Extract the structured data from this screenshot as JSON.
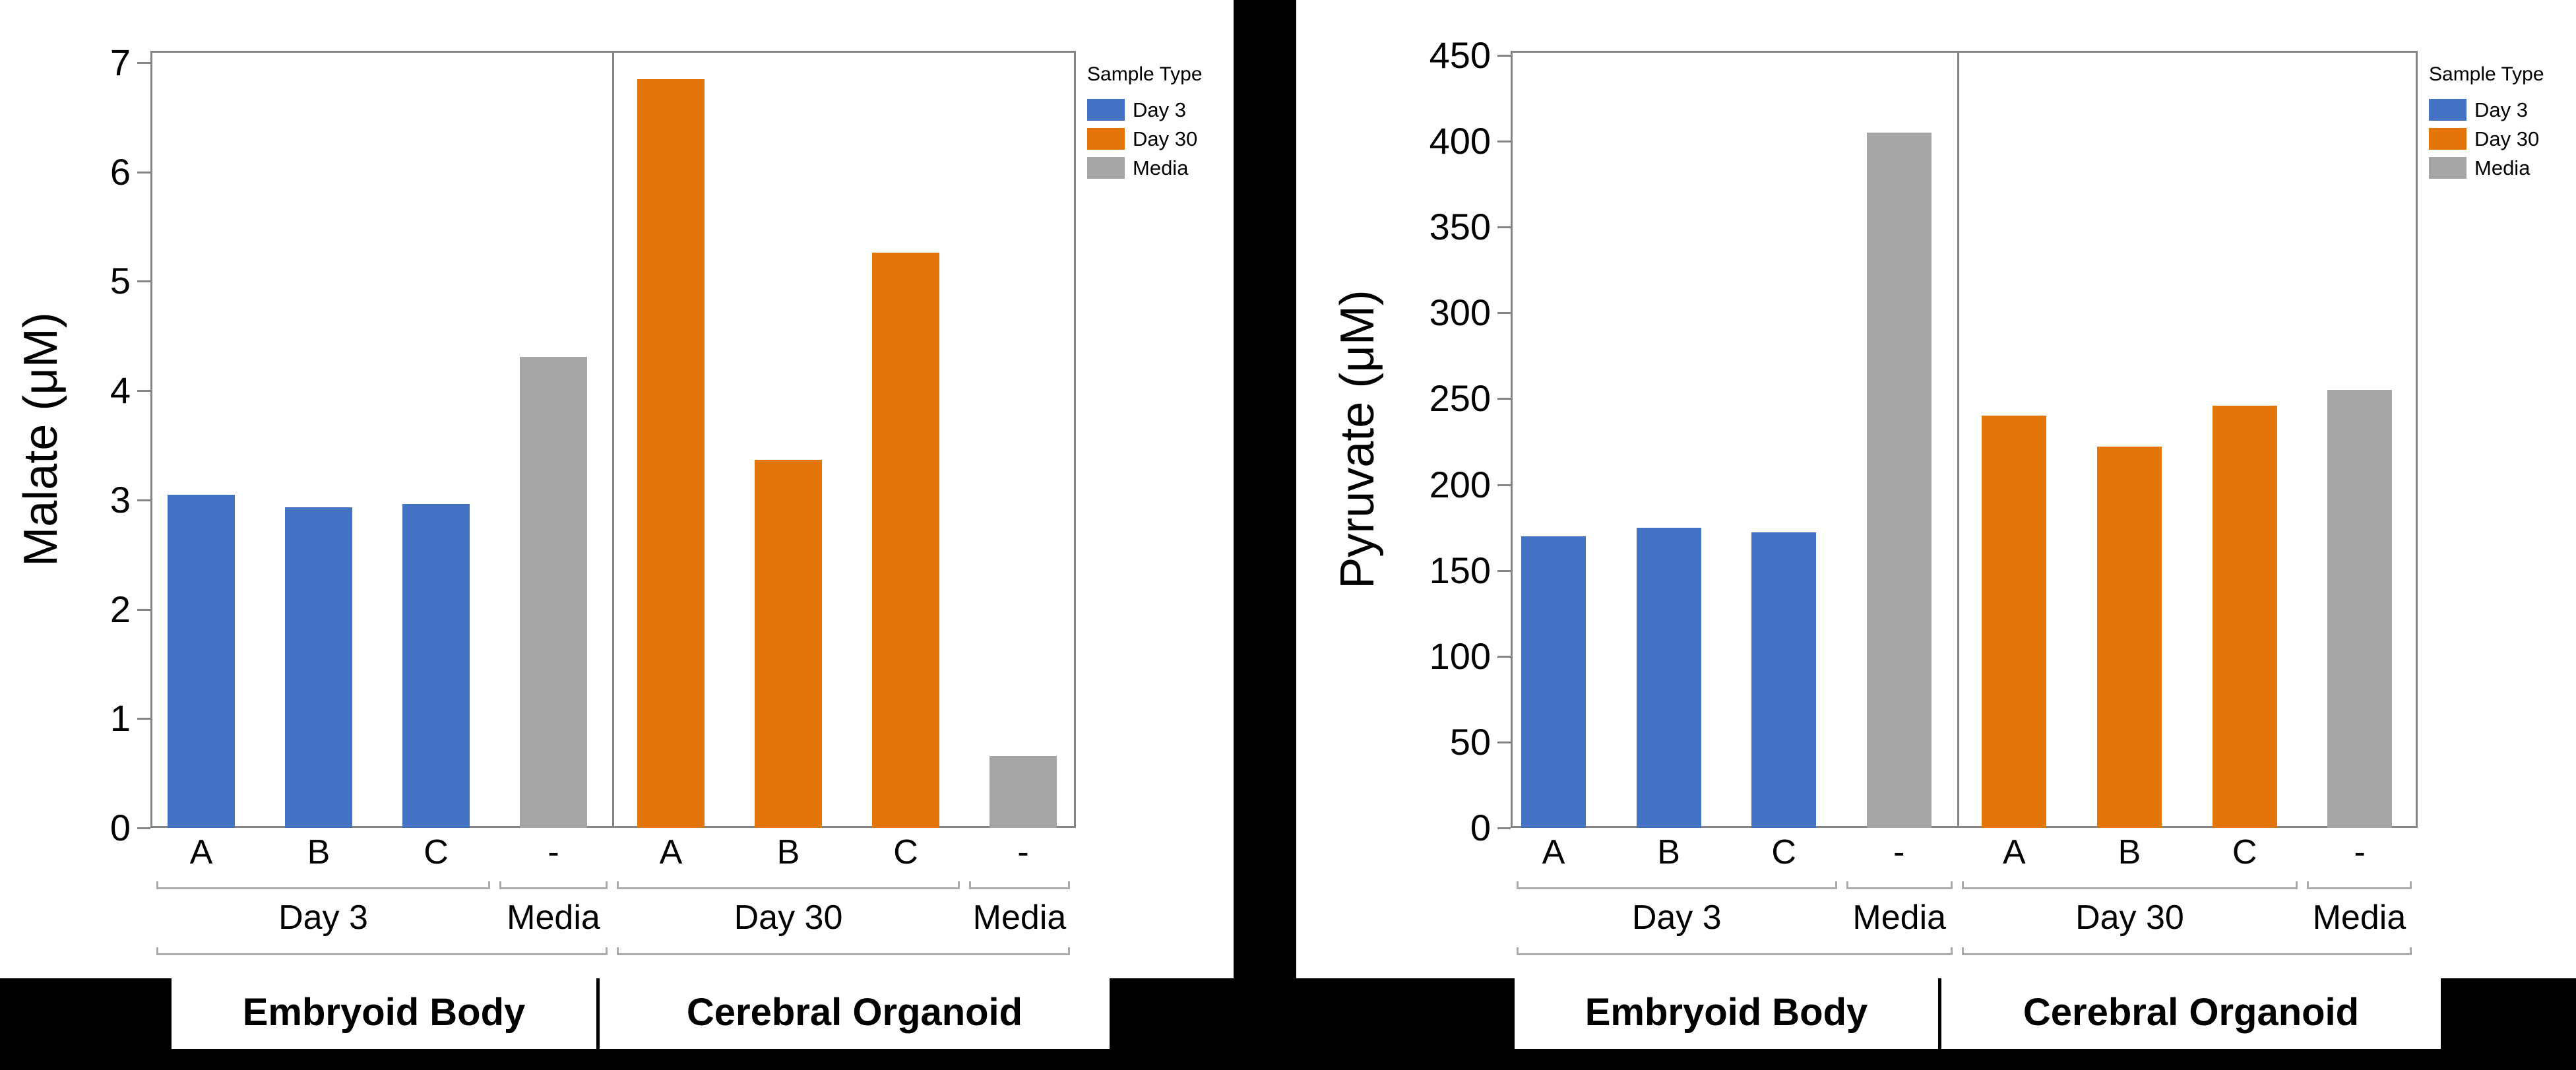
{
  "colors": {
    "day3_blue": "#4472C4",
    "day30_orange": "#E2760B",
    "media_gray": "#A5A5A5",
    "frame_gray": "#848484",
    "bracket_gray": "#ABABAB",
    "background": "#000000",
    "panel": "#FFFFFF"
  },
  "chart_data": [
    {
      "type": "bar",
      "title": "",
      "ylabel": "Malate (μM)",
      "xlabel": "",
      "ylim": [
        0,
        7
      ],
      "ytick_step": 1,
      "grid": false,
      "legend_position": "top-right-outside",
      "categories": [
        "A",
        "B",
        "C",
        "-",
        "A",
        "B",
        "C",
        "-"
      ],
      "bars": [
        {
          "category": "A",
          "series": "Day 3",
          "value": 3.05
        },
        {
          "category": "B",
          "series": "Day 3",
          "value": 2.93
        },
        {
          "category": "C",
          "series": "Day 3",
          "value": 2.96
        },
        {
          "category": "-",
          "series": "Media",
          "value": 4.31
        },
        {
          "category": "A",
          "series": "Day 30",
          "value": 6.85
        },
        {
          "category": "B",
          "series": "Day 30",
          "value": 3.37
        },
        {
          "category": "C",
          "series": "Day 30",
          "value": 5.26
        },
        {
          "category": "-",
          "series": "Media",
          "value": 0.66
        }
      ],
      "group_brackets": [
        {
          "label": "Day 3",
          "from": 0,
          "to": 2
        },
        {
          "label": "Media",
          "from": 3,
          "to": 3
        },
        {
          "label": "Day 30",
          "from": 4,
          "to": 6
        },
        {
          "label": "Media",
          "from": 7,
          "to": 7
        }
      ],
      "super_groups": [
        {
          "label": "Embryoid Body"
        },
        {
          "label": "Cerebral Organoid"
        }
      ],
      "legend": {
        "title": "Sample Type",
        "entries": [
          {
            "label": "Day 3",
            "color": "#4472C4"
          },
          {
            "label": "Day 30",
            "color": "#E2760B"
          },
          {
            "label": "Media",
            "color": "#A5A5A5"
          }
        ]
      }
    },
    {
      "type": "bar",
      "title": "",
      "ylabel": "Pyruvate (μM)",
      "xlabel": "",
      "ylim": [
        0,
        450
      ],
      "ytick_step": 50,
      "grid": false,
      "legend_position": "top-right-outside",
      "categories": [
        "A",
        "B",
        "C",
        "-",
        "A",
        "B",
        "C",
        "-"
      ],
      "bars": [
        {
          "category": "A",
          "series": "Day 3",
          "value": 170
        },
        {
          "category": "B",
          "series": "Day 3",
          "value": 175
        },
        {
          "category": "C",
          "series": "Day 3",
          "value": 172
        },
        {
          "category": "-",
          "series": "Media",
          "value": 405
        },
        {
          "category": "A",
          "series": "Day 30",
          "value": 240
        },
        {
          "category": "B",
          "series": "Day 30",
          "value": 222
        },
        {
          "category": "C",
          "series": "Day 30",
          "value": 246
        },
        {
          "category": "-",
          "series": "Media",
          "value": 255
        }
      ],
      "group_brackets": [
        {
          "label": "Day 3",
          "from": 0,
          "to": 2
        },
        {
          "label": "Media",
          "from": 3,
          "to": 3
        },
        {
          "label": "Day 30",
          "from": 4,
          "to": 6
        },
        {
          "label": "Media",
          "from": 7,
          "to": 7
        }
      ],
      "super_groups": [
        {
          "label": "Embryoid Body"
        },
        {
          "label": "Cerebral Organoid"
        }
      ],
      "legend": {
        "title": "Sample Type",
        "entries": [
          {
            "label": "Day 3",
            "color": "#4472C4"
          },
          {
            "label": "Day 30",
            "color": "#E2760B"
          },
          {
            "label": "Media",
            "color": "#A5A5A5"
          }
        ]
      }
    }
  ]
}
